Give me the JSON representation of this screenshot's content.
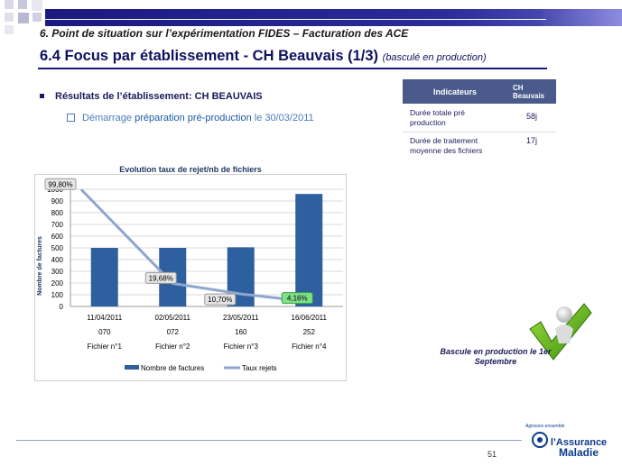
{
  "header": {
    "section": "6. Point de situation sur l’expérimentation  FIDES – Facturation  des ACE",
    "title": "6.4 Focus par établissement - CH Beauvais (1/3)",
    "subtitle": "(basculé en production)"
  },
  "content": {
    "bullet_label": "Résultats  de l’établissement:  CH BEAUVAIS",
    "sub_prefix": "Démarrage ",
    "sub_highlight": "préparation  pré-production",
    "sub_suffix": " le 30/03/2011"
  },
  "table": {
    "col1": "Indicateurs",
    "col2": "CH Beauvais",
    "rows": [
      {
        "label": "Durée  totale pré production",
        "value": "58j"
      },
      {
        "label": "Durée  de traitement moyenne des fichiers",
        "value": "17j"
      }
    ]
  },
  "chart_data": {
    "type": "bar",
    "title": "Evolution taux de rejet/nb de fichiers",
    "ylabel": "Nombre de factures",
    "ylim": [
      0,
      1000
    ],
    "yticks": [
      "0",
      "100",
      "200",
      "300",
      "400",
      "500",
      "600",
      "700",
      "800",
      "900",
      "1000"
    ],
    "categories": [
      {
        "date": "11/04/2011",
        "code": "070",
        "file": "Fichier n°1"
      },
      {
        "date": "02/05/2011",
        "code": "072",
        "file": "Fichier n°2"
      },
      {
        "date": "23/05/2011",
        "code": "160",
        "file": "Fichier n°3"
      },
      {
        "date": "16/06/2011",
        "code": "252",
        "file": "Fichier n°4"
      }
    ],
    "series": [
      {
        "name": "Nombre de factures",
        "type": "bar",
        "color": "#2e5f9e",
        "values": [
          500,
          500,
          505,
          960
        ]
      },
      {
        "name": "Taux rejets",
        "type": "line",
        "color": "#8fa6cf",
        "values": [
          99.8,
          19.68,
          10.7,
          4.16
        ],
        "labels": [
          "99,80%",
          "19,68%",
          "10,70%",
          "4,16%"
        ]
      }
    ],
    "legend": "bottom"
  },
  "right": {
    "caption": "Bascule  en production le 1er Septembre"
  },
  "footer": {
    "page": "51",
    "logo_small": "Agissons ensemble",
    "logo_line1": "l’Assurance",
    "logo_line2": "Maladie"
  }
}
